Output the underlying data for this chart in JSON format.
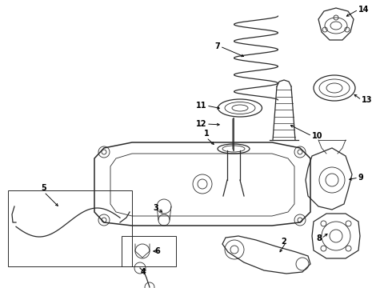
{
  "bg_color": "#ffffff",
  "line_color": "#2a2a2a",
  "label_color": "#000000",
  "fig_width": 4.9,
  "fig_height": 3.6,
  "dpi": 100,
  "xlim": [
    0,
    490
  ],
  "ylim": [
    0,
    360
  ]
}
